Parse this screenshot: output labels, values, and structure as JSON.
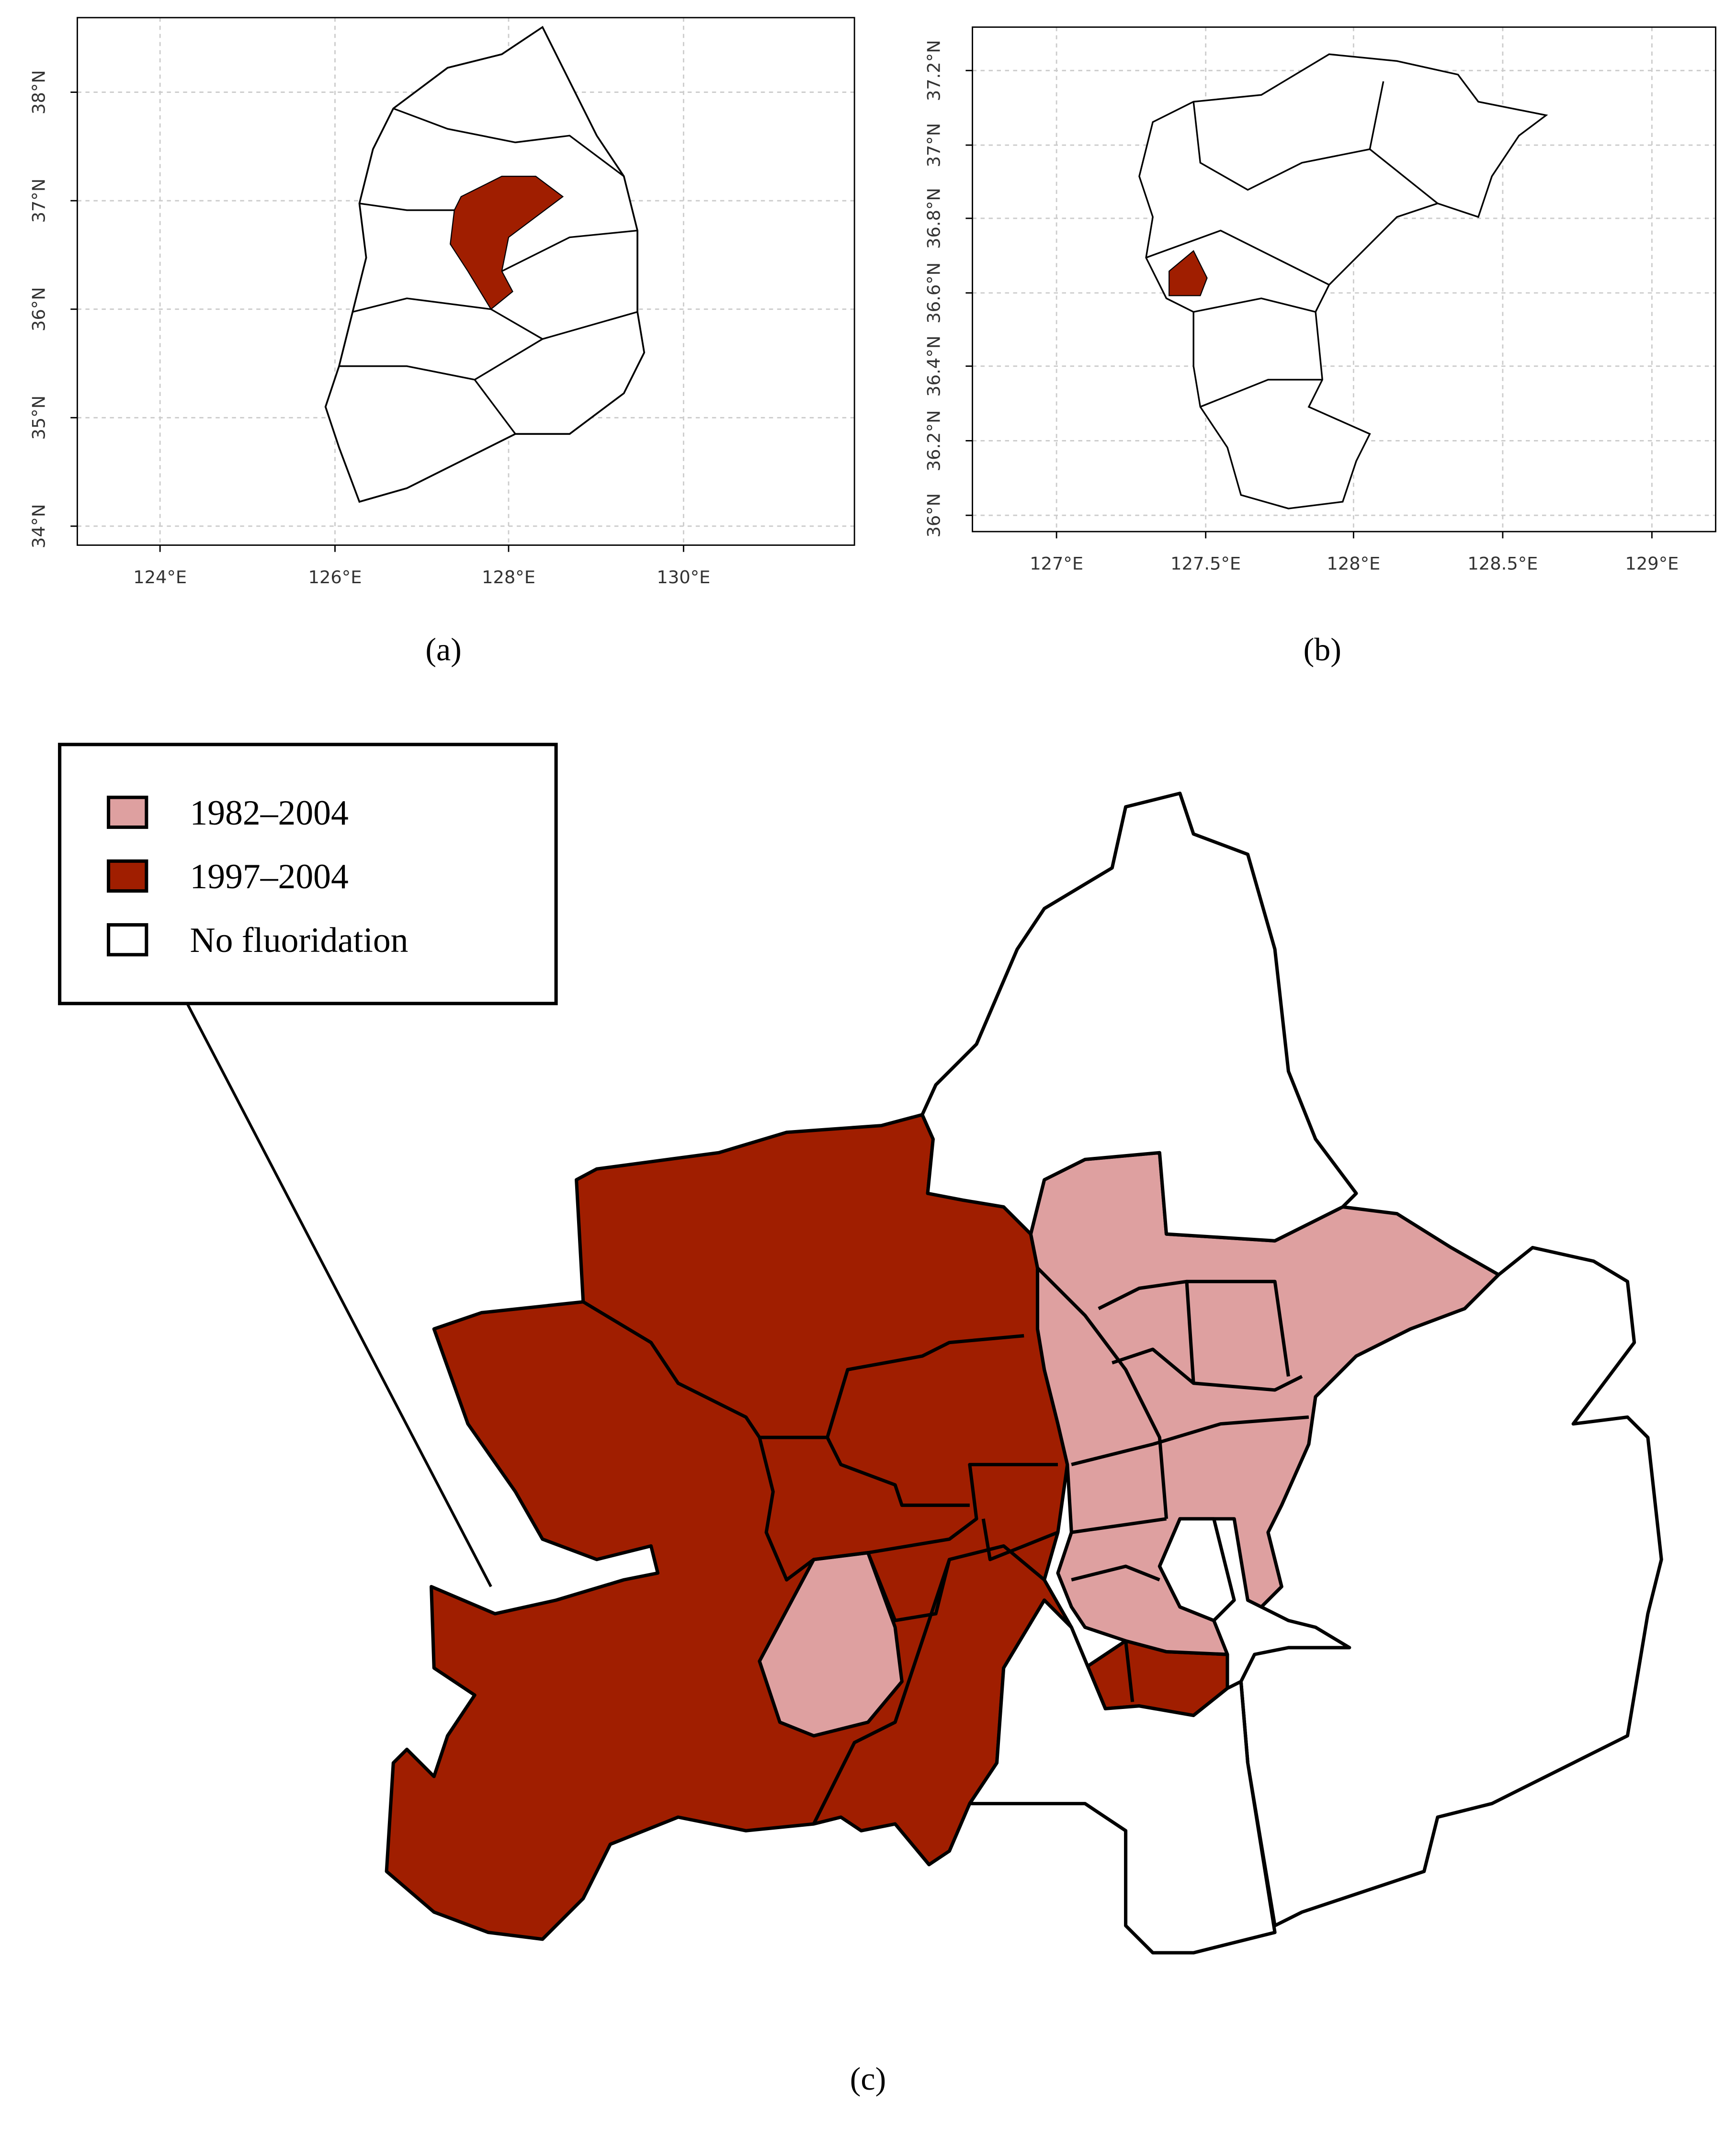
{
  "panels": [
    {
      "caption": "(a)",
      "xticks": [
        "124°E",
        "126°E",
        "128°E",
        "130°E"
      ],
      "yticks": [
        "38°N",
        "37°N",
        "36°N",
        "35°N",
        "34°N"
      ]
    },
    {
      "caption": "(b)",
      "xticks": [
        "127°E",
        "127.5°E",
        "128°E",
        "128.5°E",
        "129°E"
      ],
      "yticks": [
        "37.2°N",
        "37°N",
        "36.8°N",
        "36.6°N",
        "36.4°N",
        "36.2°N",
        "36°N"
      ]
    },
    {
      "caption": "(c)",
      "legend": [
        {
          "label": "1982–2004",
          "color": "#dea0a0"
        },
        {
          "label": "1997–2004",
          "color": "#a01e00"
        },
        {
          "label": "No fluoridation",
          "color": "#ffffff"
        }
      ]
    }
  ]
}
